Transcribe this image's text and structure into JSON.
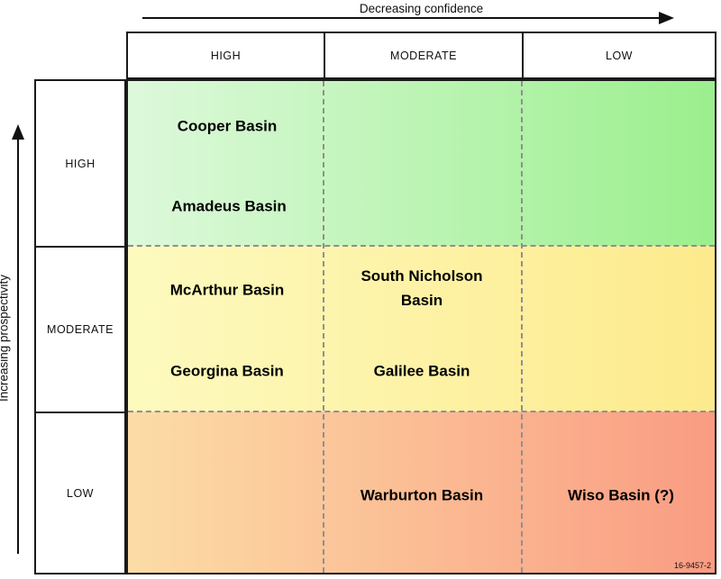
{
  "axes": {
    "top_label": "Decreasing confidence",
    "left_label": "Increasing prospectivity"
  },
  "confidence_levels": [
    {
      "label": "HIGH"
    },
    {
      "label": "MODERATE"
    },
    {
      "label": "LOW"
    }
  ],
  "prospectivity_levels": [
    {
      "label": "HIGH"
    },
    {
      "label": "MODERATE"
    },
    {
      "label": "LOW"
    }
  ],
  "basins": [
    {
      "name": "Cooper Basin",
      "prospectivity": "HIGH",
      "confidence": "HIGH"
    },
    {
      "name": "Amadeus Basin",
      "prospectivity": "HIGH",
      "confidence": "HIGH"
    },
    {
      "name": "McArthur Basin",
      "prospectivity": "MODERATE",
      "confidence": "HIGH"
    },
    {
      "name": "Georgina Basin",
      "prospectivity": "MODERATE",
      "confidence": "HIGH"
    },
    {
      "name": "South Nicholson Basin",
      "prospectivity": "MODERATE",
      "confidence": "MODERATE"
    },
    {
      "name": "Galilee Basin",
      "prospectivity": "MODERATE",
      "confidence": "MODERATE"
    },
    {
      "name": "Warburton Basin",
      "prospectivity": "LOW",
      "confidence": "MODERATE"
    },
    {
      "name": "Wiso Basin (?)",
      "prospectivity": "LOW",
      "confidence": "LOW"
    }
  ],
  "colors": {
    "row_high_left": "#ddf9db",
    "row_high_right": "#9bef8d",
    "row_moderate_left": "#fdfabf",
    "row_moderate_right": "#fdea8c",
    "row_low_left": "#fcdca6",
    "row_low_right": "#fa9c82",
    "grid_dash": "#8f8f8f",
    "border": "#1a1a1a"
  },
  "figure_number": "16-9457-2"
}
